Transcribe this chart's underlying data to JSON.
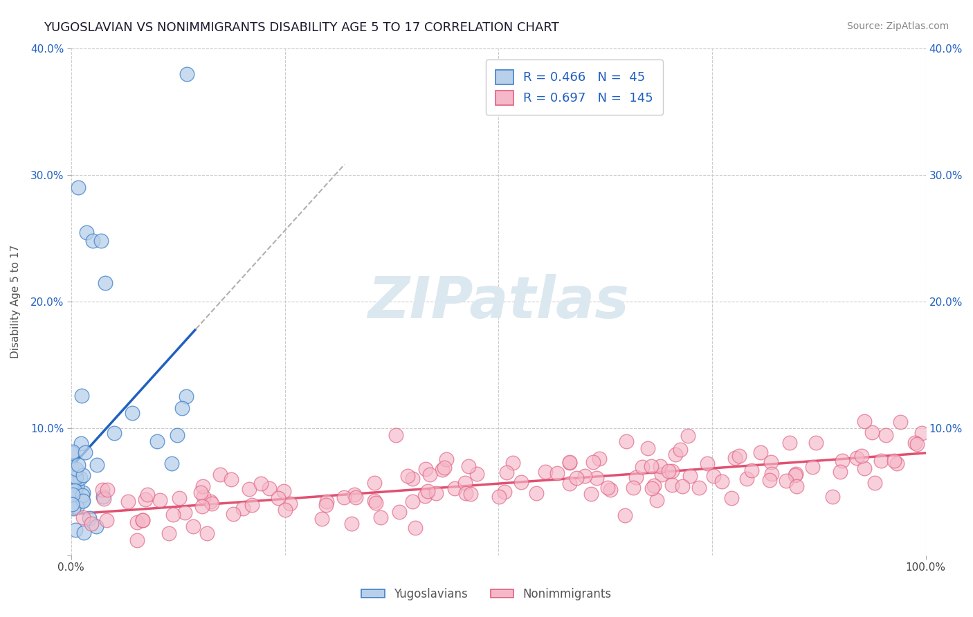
{
  "title": "YUGOSLAVIAN VS NONIMMIGRANTS DISABILITY AGE 5 TO 17 CORRELATION CHART",
  "source": "Source: ZipAtlas.com",
  "ylabel": "Disability Age 5 to 17",
  "xlim": [
    0,
    1.0
  ],
  "ylim": [
    0,
    0.4
  ],
  "ytick_vals": [
    0.0,
    0.1,
    0.2,
    0.3,
    0.4
  ],
  "ytick_labels": [
    "",
    "10.0%",
    "20.0%",
    "30.0%",
    "40.0%"
  ],
  "r_yug": 0.466,
  "n_yug": 45,
  "r_non": 0.697,
  "n_non": 145,
  "color_yug_fill": "#b8d0ea",
  "color_yug_edge": "#4080c8",
  "color_non_fill": "#f5b8c8",
  "color_non_edge": "#e06080",
  "color_yug_line": "#2060c0",
  "color_non_line": "#e05070",
  "color_dash_ext": "#b0b0b0",
  "watermark_color": "#dce8f0",
  "background": "#ffffff",
  "grid_color": "#cccccc",
  "tick_color": "#2060c0",
  "title_color": "#1a1a2e",
  "source_color": "#888888",
  "seed": 99
}
